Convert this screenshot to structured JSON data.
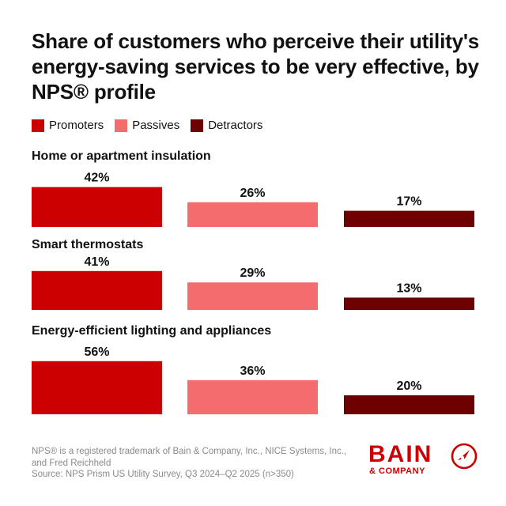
{
  "title": "Share of customers who perceive their utility's energy-saving services to be very effective, by NPS® profile",
  "legend": [
    {
      "label": "Promoters",
      "color": "#cc0000"
    },
    {
      "label": "Passives",
      "color": "#f46c6c"
    },
    {
      "label": "Detractors",
      "color": "#6e0000"
    }
  ],
  "chart_data": {
    "type": "bar",
    "series_names": [
      "Promoters",
      "Passives",
      "Detractors"
    ],
    "colors": [
      "#cc0000",
      "#f46c6c",
      "#6e0000"
    ],
    "groups": [
      {
        "label": "Home or apartment insulation",
        "values": [
          42,
          26,
          17
        ],
        "value_labels": [
          "42%",
          "26%",
          "17%"
        ]
      },
      {
        "label": "Smart thermostats",
        "values": [
          41,
          29,
          13
        ],
        "value_labels": [
          "41%",
          "29%",
          "13%"
        ]
      },
      {
        "label": "Energy-efficient lighting and appliances",
        "values": [
          56,
          36,
          20
        ],
        "value_labels": [
          "56%",
          "36%",
          "20%"
        ]
      }
    ],
    "unit": "%"
  },
  "footnote": {
    "line1": "NPS® is a registered trademark of Bain & Company, Inc., NICE Systems, Inc., and Fred Reichheld",
    "line2": "Source: NPS Prism US Utility Survey, Q3 2024–Q2 2025 (n>350)"
  },
  "logo": {
    "word": "BAIN",
    "sub": "& COMPANY",
    "icon": "bain-compass-icon"
  }
}
